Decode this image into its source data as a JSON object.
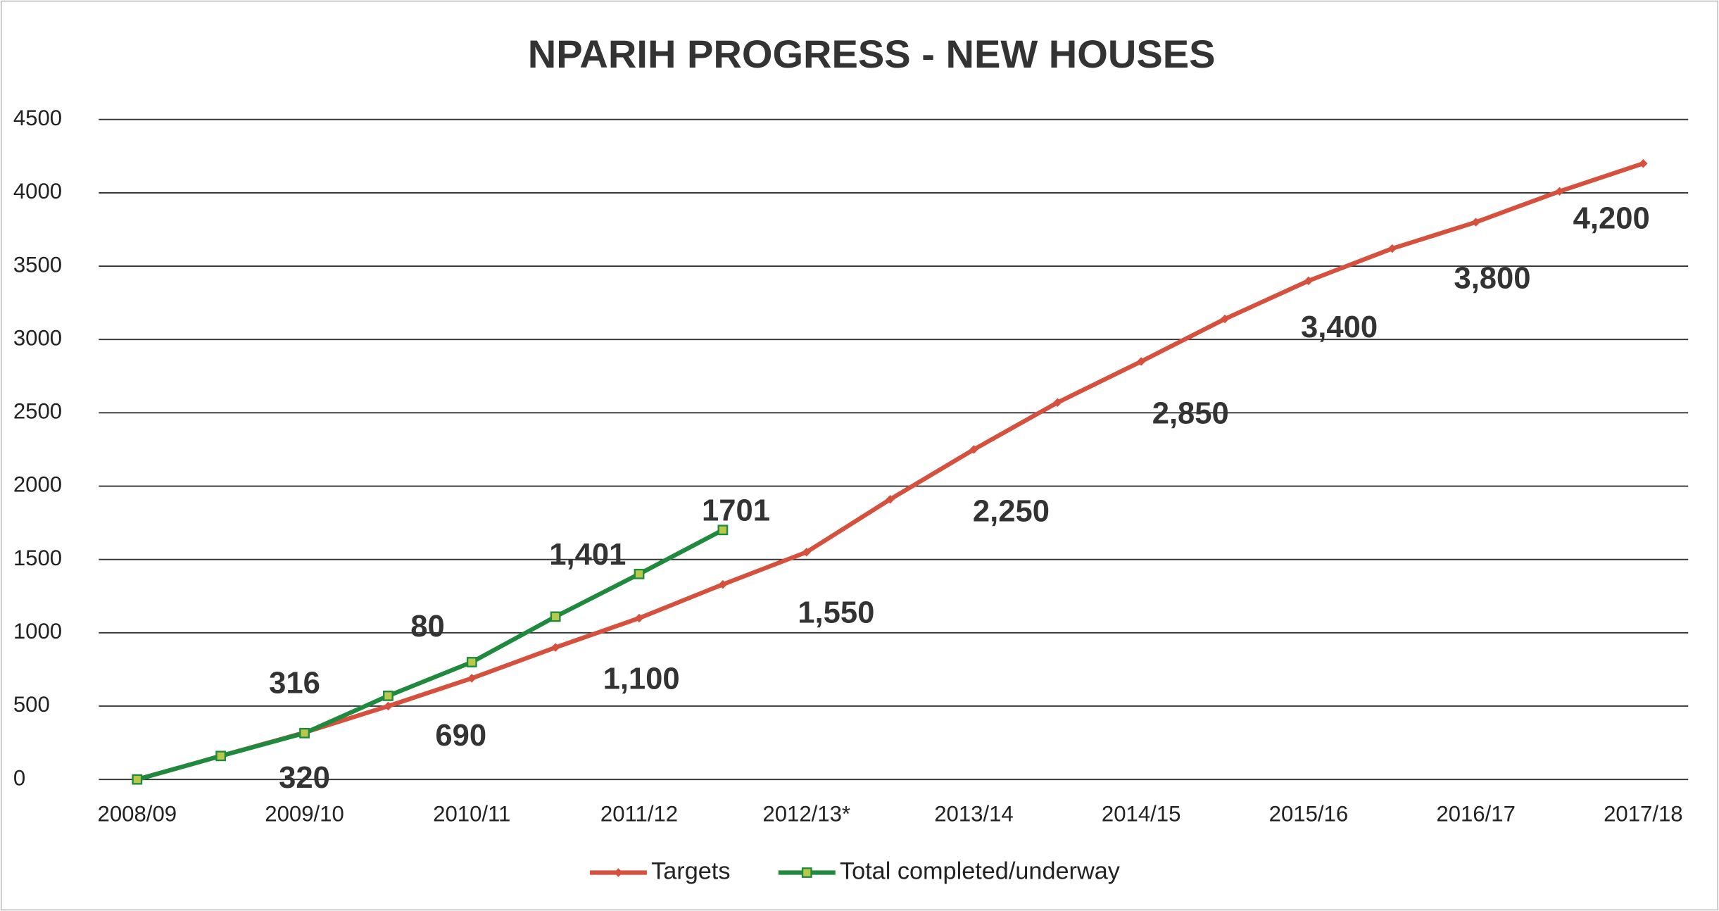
{
  "chart_data": {
    "type": "line",
    "title": "NPARIH PROGRESS - NEW HOUSES",
    "categories": [
      "2008/09",
      null,
      "2009/10",
      null,
      "2010/11",
      null,
      "2011/12",
      null,
      "2012/13*",
      null,
      "2013/14",
      null,
      "2014/15",
      null,
      "2015/16",
      null,
      "2016/17",
      null,
      "2017/18"
    ],
    "series": [
      {
        "name": "Targets",
        "color": "#d6503e",
        "values": [
          0,
          160,
          320,
          500,
          690,
          900,
          1100,
          1330,
          1550,
          1910,
          2250,
          2570,
          2850,
          3140,
          3400,
          3620,
          3800,
          4010,
          4200
        ],
        "value_labels": [
          null,
          null,
          "320",
          null,
          "690",
          null,
          "1,100",
          null,
          "1,550",
          null,
          "2,250",
          null,
          "2,850",
          null,
          "3,400",
          null,
          "3,800",
          null,
          "4,200"
        ]
      },
      {
        "name": "Total completed/underway",
        "color": "#1f8a3d",
        "values": [
          0,
          160,
          316,
          570,
          800,
          1110,
          1401,
          1701,
          null,
          null,
          null,
          null,
          null,
          null,
          null,
          null,
          null,
          null,
          null
        ],
        "value_labels": [
          null,
          null,
          "316",
          null,
          null,
          null,
          "1,401",
          "1701",
          null,
          null,
          null,
          null,
          null,
          null,
          null,
          null,
          null,
          null,
          null
        ]
      }
    ],
    "annotations": [
      "80"
    ],
    "ylim": [
      0,
      4500
    ],
    "yticks": [
      0,
      500,
      1000,
      1500,
      2000,
      2500,
      3000,
      3500,
      4000,
      4500
    ],
    "grid": true,
    "legend": "bottom"
  }
}
